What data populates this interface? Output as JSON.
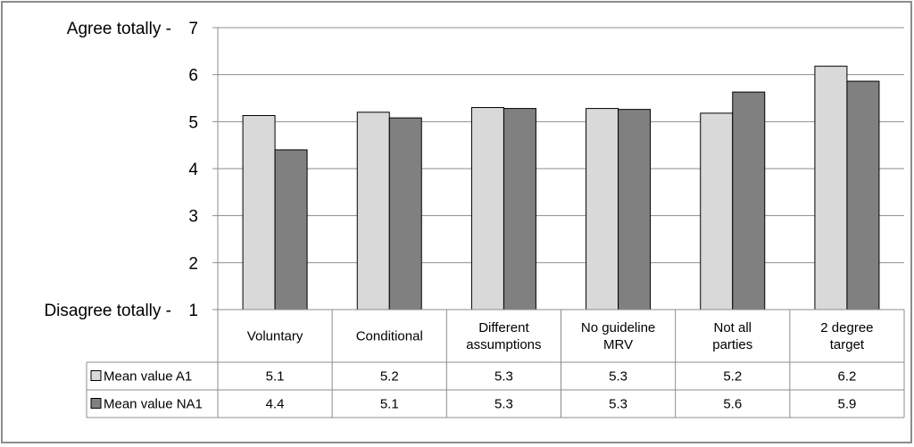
{
  "chart_data": {
    "type": "bar",
    "title": "",
    "xlabel": "",
    "ylabel": "",
    "ylim": [
      1,
      7
    ],
    "yticks": [
      1,
      2,
      3,
      4,
      5,
      6,
      7
    ],
    "ytick_prefix": {
      "1": "Disagree totally -",
      "7": "Agree totally -"
    },
    "grid": true,
    "categories": [
      [
        "Voluntary"
      ],
      [
        "Conditional"
      ],
      [
        "Different",
        "assumptions"
      ],
      [
        "No guideline",
        "MRV"
      ],
      [
        "Not all",
        "parties"
      ],
      [
        "2 degree",
        "target"
      ]
    ],
    "series": [
      {
        "name": "Mean value A1",
        "color": "#d9d9d9",
        "values": [
          5.13,
          5.2,
          5.3,
          5.28,
          5.18,
          6.18
        ],
        "labels": [
          "5.1",
          "5.2",
          "5.3",
          "5.3",
          "5.2",
          "6.2"
        ]
      },
      {
        "name": "Mean value NA1",
        "color": "#808080",
        "values": [
          4.4,
          5.08,
          5.28,
          5.26,
          5.63,
          5.86
        ],
        "labels": [
          "4.4",
          "5.1",
          "5.3",
          "5.3",
          "5.6",
          "5.9"
        ]
      }
    ],
    "legend": "data-table-left"
  }
}
